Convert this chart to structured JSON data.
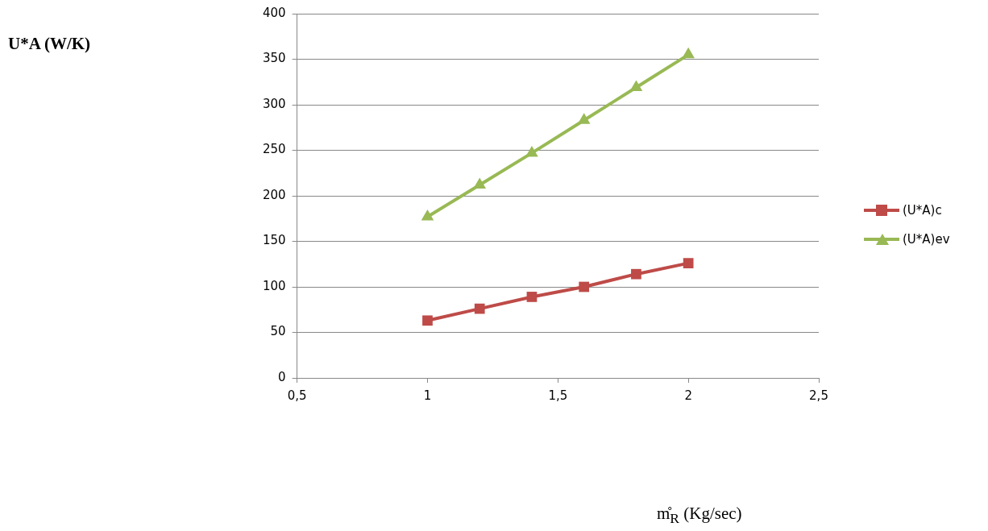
{
  "chart_data": {
    "type": "line",
    "annotations": [
      "U*A (W/K)",
      "m̊$_{R}$  (Kg/sec)"
    ],
    "x": [
      1,
      1.2,
      1.4,
      1.6,
      1.8,
      2
    ],
    "series": [
      {
        "name": "(U*A)c",
        "color": "#be4b48",
        "marker": "square",
        "values": [
          63,
          76,
          89,
          100,
          114,
          126
        ]
      },
      {
        "name": "(U*A)ev",
        "color": "#98b954",
        "marker": "triangle",
        "values": [
          177,
          212,
          247,
          283,
          319,
          355
        ]
      }
    ],
    "xlim": [
      0.5,
      2.5
    ],
    "xticks": [
      {
        "value": 0.5,
        "label": "0,5"
      },
      1,
      {
        "value": 1.5,
        "label": "1,5"
      },
      2,
      {
        "value": 2.5,
        "label": "2,5"
      }
    ],
    "ylim": [
      0,
      400
    ],
    "yticks": [
      0,
      50,
      100,
      150,
      200,
      250,
      300,
      350,
      400
    ],
    "grid": "y",
    "legend": "right",
    "line_style": "solid"
  }
}
